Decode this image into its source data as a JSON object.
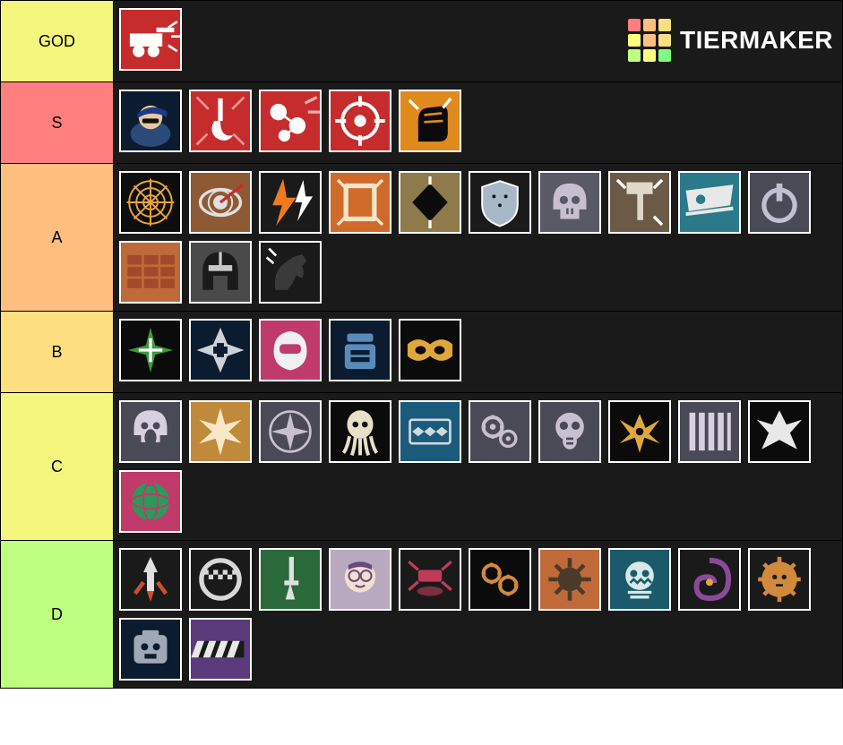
{
  "watermark": {
    "text": "TIERMAKER",
    "grid_colors": [
      "#ff7f7f",
      "#ffbf7f",
      "#ffdf7f",
      "#ffff7f",
      "#ffbf7f",
      "#ffdf7f",
      "#bfff7f",
      "#ffff7f",
      "#7fff7f"
    ]
  },
  "tiers": [
    {
      "name": "GOD",
      "label_color": "#f4f67e",
      "items": [
        {
          "name": "turret-icon",
          "bg": "#c72c2c",
          "fg": "#ffffff",
          "shape": "turret"
        }
      ]
    },
    {
      "name": "S",
      "label_color": "#fe7f7e",
      "items": [
        {
          "name": "recruit-icon",
          "bg": "#0b1b30",
          "fg": "#2b4a77",
          "shape": "recruit"
        },
        {
          "name": "hook-icon",
          "bg": "#c72c2c",
          "fg": "#ffffff",
          "shape": "hook"
        },
        {
          "name": "balls-icon",
          "bg": "#c72c2c",
          "fg": "#ffffff",
          "shape": "balls"
        },
        {
          "name": "target-icon",
          "bg": "#c72c2c",
          "fg": "#ffffff",
          "shape": "target"
        },
        {
          "name": "fist-icon",
          "bg": "#e08a1e",
          "fg": "#0b0b0b",
          "shape": "fist"
        }
      ]
    },
    {
      "name": "A",
      "label_color": "#febe7e",
      "items": [
        {
          "name": "web-icon",
          "bg": "#0d0d0d",
          "fg": "#e8a33a",
          "shape": "web"
        },
        {
          "name": "eye-icon",
          "bg": "#8e5a34",
          "fg": "#e0e0e0",
          "shape": "eye"
        },
        {
          "name": "lightning-icon",
          "bg": "#1a1a1a",
          "fg": "#f07a1e",
          "shape": "bolts"
        },
        {
          "name": "breach-icon",
          "bg": "#d06a2a",
          "fg": "#f4e4c8",
          "shape": "breach"
        },
        {
          "name": "stealth-icon",
          "bg": "#8e7a4a",
          "fg": "#0b0b0b",
          "shape": "diamond"
        },
        {
          "name": "shield-icon",
          "bg": "#1a1a1a",
          "fg": "#a8b8c8",
          "shape": "shield"
        },
        {
          "name": "skull-icon",
          "bg": "#5a5a66",
          "fg": "#c8c0d0",
          "shape": "skull"
        },
        {
          "name": "hammer-icon",
          "bg": "#6a5a46",
          "fg": "#e0d8c8",
          "shape": "hammer"
        },
        {
          "name": "drone-icon",
          "bg": "#2a7a8a",
          "fg": "#e8e8e8",
          "shape": "drone"
        },
        {
          "name": "power-icon",
          "bg": "#4a4a56",
          "fg": "#c0c0d0",
          "shape": "power"
        },
        {
          "name": "wall-icon",
          "bg": "#c06a3a",
          "fg": "#a04a2a",
          "shape": "wall"
        },
        {
          "name": "helmet-icon",
          "bg": "#4a4a4a",
          "fg": "#1a1a1a",
          "shape": "helmet"
        },
        {
          "name": "horse-icon",
          "bg": "#1a1a1a",
          "fg": "#3a3a3a",
          "shape": "horse"
        }
      ]
    },
    {
      "name": "B",
      "label_color": "#fedf7f",
      "items": [
        {
          "name": "star-cross-icon",
          "bg": "#0b0b0b",
          "fg": "#3a9a3a",
          "shape": "starcross"
        },
        {
          "name": "medic-icon",
          "bg": "#0b1b30",
          "fg": "#d0d0d8",
          "shape": "medic"
        },
        {
          "name": "racer-icon",
          "bg": "#c03a6a",
          "fg": "#f0f0f0",
          "shape": "racer"
        },
        {
          "name": "vest-icon",
          "bg": "#0b1b30",
          "fg": "#5a8aba",
          "shape": "vest"
        },
        {
          "name": "mask-eyes-icon",
          "bg": "#0b0b0b",
          "fg": "#e0a83a",
          "shape": "maskeyes"
        }
      ]
    },
    {
      "name": "C",
      "label_color": "#f4f67e",
      "items": [
        {
          "name": "scream-icon",
          "bg": "#4a4a56",
          "fg": "#d8d0e0",
          "shape": "scream"
        },
        {
          "name": "burst-icon",
          "bg": "#c08a3a",
          "fg": "#f8e8c8",
          "shape": "burst"
        },
        {
          "name": "compass-icon",
          "bg": "#4a4a56",
          "fg": "#c8c0d0",
          "shape": "compass"
        },
        {
          "name": "squid-icon",
          "bg": "#0b0b0b",
          "fg": "#e8e0c8",
          "shape": "squid"
        },
        {
          "name": "trap-icon",
          "bg": "#1a5a7a",
          "fg": "#d0d8e0",
          "shape": "trap"
        },
        {
          "name": "gears-icon",
          "bg": "#4a4a56",
          "fg": "#c8c0d0",
          "shape": "gears"
        },
        {
          "name": "gasmask-icon",
          "bg": "#4a4a56",
          "fg": "#c8c0d0",
          "shape": "gasmask"
        },
        {
          "name": "wings-icon",
          "bg": "#0b0b0b",
          "fg": "#e0a83a",
          "shape": "wings"
        },
        {
          "name": "bars-icon",
          "bg": "#4a4a56",
          "fg": "#d8d0e0",
          "shape": "bars"
        },
        {
          "name": "phoenix-icon",
          "bg": "#0b0b0b",
          "fg": "#e8e8e8",
          "shape": "phoenix"
        },
        {
          "name": "globe-icon",
          "bg": "#c03a6a",
          "fg": "#2a9a5a",
          "shape": "globe"
        }
      ]
    },
    {
      "name": "D",
      "label_color": "#beff7f",
      "items": [
        {
          "name": "rocket-icon",
          "bg": "#1a1a1a",
          "fg": "#c8502a",
          "shape": "rocket"
        },
        {
          "name": "checker-icon",
          "bg": "#1a1a1a",
          "fg": "#d8d8d8",
          "shape": "checker"
        },
        {
          "name": "knife-icon",
          "bg": "#2a6a3a",
          "fg": "#e0e0e0",
          "shape": "knife"
        },
        {
          "name": "nerd-icon",
          "bg": "#b8a8c0",
          "fg": "#6a4a7a",
          "shape": "nerd"
        },
        {
          "name": "drone2-icon",
          "bg": "#1a1a1a",
          "fg": "#c03a5a",
          "shape": "drone2"
        },
        {
          "name": "cogs-icon",
          "bg": "#0b0b0b",
          "fg": "#d08a3a",
          "shape": "cogs"
        },
        {
          "name": "spike-icon",
          "bg": "#c06a3a",
          "fg": "#4a3a2a",
          "shape": "spikeball"
        },
        {
          "name": "frost-icon",
          "bg": "#1a5a6a",
          "fg": "#d8e8e8",
          "shape": "frost"
        },
        {
          "name": "swirl-icon",
          "bg": "#1a1a1a",
          "fg": "#8a4a9a",
          "shape": "swirl"
        },
        {
          "name": "lion-icon",
          "bg": "#1a1a1a",
          "fg": "#d08a3a",
          "shape": "lion"
        },
        {
          "name": "skullpad-icon",
          "bg": "#0b1b30",
          "fg": "#a0a8b8",
          "shape": "skullpad"
        },
        {
          "name": "stripes-icon",
          "bg": "#5a3a7a",
          "fg": "#e8e8e8",
          "shape": "stripes"
        }
      ]
    }
  ]
}
